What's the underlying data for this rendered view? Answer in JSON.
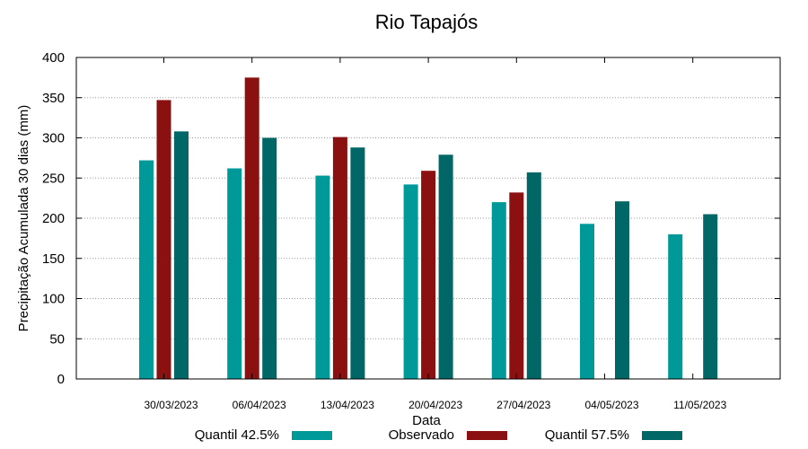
{
  "chart_data": {
    "type": "bar",
    "title": "Rio Tapajós",
    "xlabel": "Data",
    "ylabel": "Precipitação Acumulada 30 dias (mm)",
    "ylim": [
      0,
      400
    ],
    "yticks": [
      0,
      50,
      100,
      150,
      200,
      250,
      300,
      350,
      400
    ],
    "grid": true,
    "legend_position": "bottom",
    "categories": [
      "30/03/2023",
      "06/04/2023",
      "13/04/2023",
      "20/04/2023",
      "27/04/2023",
      "04/05/2023",
      "11/05/2023"
    ],
    "series": [
      {
        "name": "Quantil 42.5%",
        "color": "#009999",
        "values": [
          272,
          262,
          253,
          242,
          220,
          193,
          180
        ]
      },
      {
        "name": "Observado",
        "color": "#8b1010",
        "values": [
          347,
          375,
          301,
          259,
          232,
          null,
          null
        ]
      },
      {
        "name": "Quantil 57.5%",
        "color": "#006666",
        "values": [
          308,
          300,
          288,
          279,
          257,
          221,
          205
        ]
      }
    ]
  }
}
